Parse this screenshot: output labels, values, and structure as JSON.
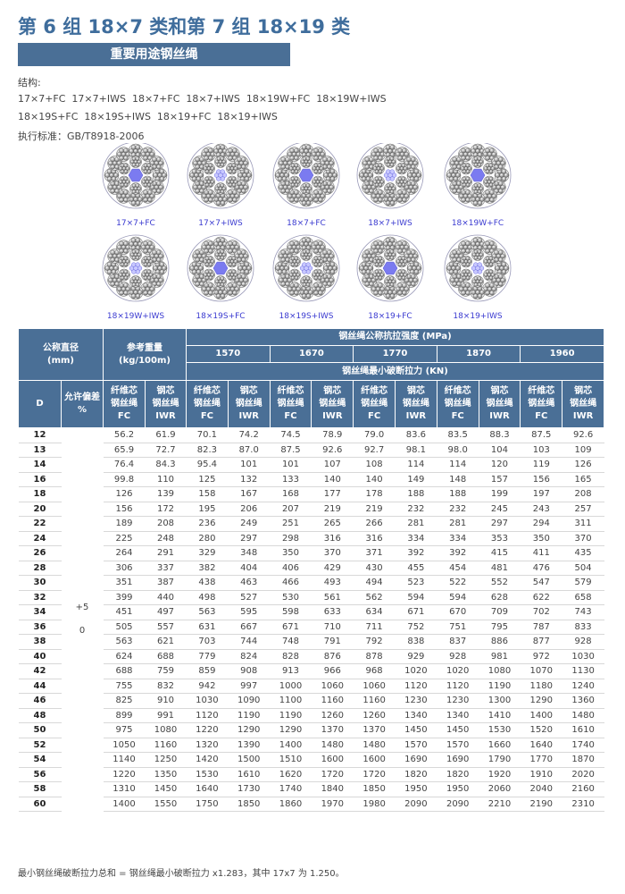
{
  "header": {
    "title": "第 6 组 18×7 类和第 7 组 18×19 类",
    "subtitle": "重要用途钢丝绳"
  },
  "structure": {
    "label": "结构:",
    "lines": [
      "17×7+FC  17×7+IWS  18×7+FC  18×7+IWS  18×19W+FC  18×19W+IWS",
      "18×19S+FC  18×19S+IWS  18×19+FC  18×19+IWS"
    ]
  },
  "standard": "执行标准：GB/T8918-2006",
  "diagrams": [
    "17×7+FC",
    "17×7+IWS",
    "18×7+FC",
    "18×7+IWS",
    "18×19W+FC",
    "18×19W+IWS",
    "18×19S+FC",
    "18×19S+IWS",
    "18×19+FC",
    "18×19+IWS"
  ],
  "table": {
    "header": {
      "diameter": [
        "公称直径",
        "(mm)"
      ],
      "weight": [
        "参考重量",
        "(kg/100m)"
      ],
      "strength": "钢丝绳公称抗拉强度 (MPa)",
      "grades": [
        "1570",
        "1670",
        "1770",
        "1870",
        "1960"
      ],
      "force": "钢丝绳最小破断拉力 (KN)",
      "d": "D",
      "tolerance": [
        "允许偏差",
        "%"
      ],
      "fc": [
        "纤维芯",
        "钢丝绳",
        "FC"
      ],
      "iwr": [
        "钢芯",
        "钢丝绳",
        "IWR"
      ]
    },
    "tolerance": [
      "+5",
      "0"
    ],
    "rows": [
      {
        "d": "12",
        "values": [
          "56.2",
          "61.9",
          "70.1",
          "74.2",
          "74.5",
          "78.9",
          "79.0",
          "83.6",
          "83.5",
          "88.3",
          "87.5",
          "92.6"
        ]
      },
      {
        "d": "13",
        "values": [
          "65.9",
          "72.7",
          "82.3",
          "87.0",
          "87.5",
          "92.6",
          "92.7",
          "98.1",
          "98.0",
          "104",
          "103",
          "109"
        ]
      },
      {
        "d": "14",
        "values": [
          "76.4",
          "84.3",
          "95.4",
          "101",
          "101",
          "107",
          "108",
          "114",
          "114",
          "120",
          "119",
          "126"
        ]
      },
      {
        "d": "16",
        "values": [
          "99.8",
          "110",
          "125",
          "132",
          "133",
          "140",
          "140",
          "149",
          "148",
          "157",
          "156",
          "165"
        ]
      },
      {
        "d": "18",
        "values": [
          "126",
          "139",
          "158",
          "167",
          "168",
          "177",
          "178",
          "188",
          "188",
          "199",
          "197",
          "208"
        ]
      },
      {
        "d": "20",
        "values": [
          "156",
          "172",
          "195",
          "206",
          "207",
          "219",
          "219",
          "232",
          "232",
          "245",
          "243",
          "257"
        ]
      },
      {
        "d": "22",
        "values": [
          "189",
          "208",
          "236",
          "249",
          "251",
          "265",
          "266",
          "281",
          "281",
          "297",
          "294",
          "311"
        ]
      },
      {
        "d": "24",
        "values": [
          "225",
          "248",
          "280",
          "297",
          "298",
          "316",
          "316",
          "334",
          "334",
          "353",
          "350",
          "370"
        ]
      },
      {
        "d": "26",
        "values": [
          "264",
          "291",
          "329",
          "348",
          "350",
          "370",
          "371",
          "392",
          "392",
          "415",
          "411",
          "435"
        ]
      },
      {
        "d": "28",
        "values": [
          "306",
          "337",
          "382",
          "404",
          "406",
          "429",
          "430",
          "455",
          "454",
          "481",
          "476",
          "504"
        ]
      },
      {
        "d": "30",
        "values": [
          "351",
          "387",
          "438",
          "463",
          "466",
          "493",
          "494",
          "523",
          "522",
          "552",
          "547",
          "579"
        ]
      },
      {
        "d": "32",
        "values": [
          "399",
          "440",
          "498",
          "527",
          "530",
          "561",
          "562",
          "594",
          "594",
          "628",
          "622",
          "658"
        ]
      },
      {
        "d": "34",
        "values": [
          "451",
          "497",
          "563",
          "595",
          "598",
          "633",
          "634",
          "671",
          "670",
          "709",
          "702",
          "743"
        ]
      },
      {
        "d": "36",
        "values": [
          "505",
          "557",
          "631",
          "667",
          "671",
          "710",
          "711",
          "752",
          "751",
          "795",
          "787",
          "833"
        ]
      },
      {
        "d": "38",
        "values": [
          "563",
          "621",
          "703",
          "744",
          "748",
          "791",
          "792",
          "838",
          "837",
          "886",
          "877",
          "928"
        ]
      },
      {
        "d": "40",
        "values": [
          "624",
          "688",
          "779",
          "824",
          "828",
          "876",
          "878",
          "929",
          "928",
          "981",
          "972",
          "1030"
        ]
      },
      {
        "d": "42",
        "values": [
          "688",
          "759",
          "859",
          "908",
          "913",
          "966",
          "968",
          "1020",
          "1020",
          "1080",
          "1070",
          "1130"
        ]
      },
      {
        "d": "44",
        "values": [
          "755",
          "832",
          "942",
          "997",
          "1000",
          "1060",
          "1060",
          "1120",
          "1120",
          "1190",
          "1180",
          "1240"
        ]
      },
      {
        "d": "46",
        "values": [
          "825",
          "910",
          "1030",
          "1090",
          "1100",
          "1160",
          "1160",
          "1230",
          "1230",
          "1300",
          "1290",
          "1360"
        ]
      },
      {
        "d": "48",
        "values": [
          "899",
          "991",
          "1120",
          "1190",
          "1190",
          "1260",
          "1260",
          "1340",
          "1340",
          "1410",
          "1400",
          "1480"
        ]
      },
      {
        "d": "50",
        "values": [
          "975",
          "1080",
          "1220",
          "1290",
          "1290",
          "1370",
          "1370",
          "1450",
          "1450",
          "1530",
          "1520",
          "1610"
        ]
      },
      {
        "d": "52",
        "values": [
          "1050",
          "1160",
          "1320",
          "1390",
          "1400",
          "1480",
          "1480",
          "1570",
          "1570",
          "1660",
          "1640",
          "1740"
        ]
      },
      {
        "d": "54",
        "values": [
          "1140",
          "1250",
          "1420",
          "1500",
          "1510",
          "1600",
          "1600",
          "1690",
          "1690",
          "1790",
          "1770",
          "1870"
        ]
      },
      {
        "d": "56",
        "values": [
          "1220",
          "1350",
          "1530",
          "1610",
          "1620",
          "1720",
          "1720",
          "1820",
          "1820",
          "1920",
          "1910",
          "2020"
        ]
      },
      {
        "d": "58",
        "values": [
          "1310",
          "1450",
          "1640",
          "1730",
          "1740",
          "1840",
          "1850",
          "1950",
          "1950",
          "2060",
          "2040",
          "2160"
        ]
      },
      {
        "d": "60",
        "values": [
          "1400",
          "1550",
          "1750",
          "1850",
          "1860",
          "1970",
          "1980",
          "2090",
          "2090",
          "2210",
          "2190",
          "2310"
        ]
      }
    ]
  },
  "footnote": "最小钢丝绳破断拉力总和 = 钢丝绳最小破断拉力 x1.283，其中 17x7 为 1.250。"
}
